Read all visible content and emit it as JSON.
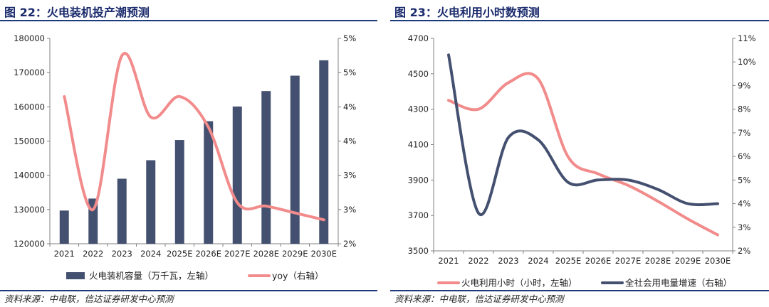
{
  "figures": [
    {
      "id": "left",
      "title": "图 22：火电装机投产潮预测",
      "source": "资料来源：中电联，信达证券研发中心预测"
    },
    {
      "id": "right",
      "title": "图 23：火电利用小时数预测",
      "source": "资料来源：中电联，信达证券研发中心预测"
    }
  ],
  "chart_data": [
    {
      "type": "bar",
      "categories": [
        "2021",
        "2022",
        "2023",
        "2024",
        "2025E",
        "2026E",
        "2027E",
        "2028E",
        "2029E",
        "2030E"
      ],
      "series": [
        {
          "name": "火电装机容量（万千瓦，左轴）",
          "kind": "bar",
          "axis": "left",
          "color": "#44506f",
          "values": [
            129700,
            133200,
            139000,
            144400,
            150300,
            155800,
            160100,
            164600,
            169100,
            173600
          ]
        },
        {
          "name": "yoy（右轴）",
          "kind": "line",
          "axis": "right",
          "color": "#f28b8b",
          "values": [
            4.15,
            2.5,
            4.75,
            3.85,
            4.15,
            3.7,
            2.6,
            2.55,
            2.45,
            2.35
          ]
        }
      ],
      "left_axis": {
        "min": 120000,
        "max": 180000,
        "ticks": [
          "120000",
          "130000",
          "140000",
          "150000",
          "160000",
          "170000",
          "180000"
        ]
      },
      "right_axis": {
        "min": 2,
        "max": 5,
        "ticks": [
          "2%",
          "3%",
          "3%",
          "4%",
          "4%",
          "5%",
          "5%"
        ]
      },
      "grid": false,
      "legend": "bottom"
    },
    {
      "type": "line",
      "categories": [
        "2021",
        "2022",
        "2023",
        "2024",
        "2025E",
        "2026E",
        "2027E",
        "2028E",
        "2029E",
        "2030E"
      ],
      "series": [
        {
          "name": "火电利用小时（小时，左轴）",
          "kind": "line",
          "axis": "left",
          "color": "#f28b8b",
          "values": [
            4350,
            4300,
            4450,
            4470,
            4030,
            3935,
            3870,
            3780,
            3680,
            3590
          ]
        },
        {
          "name": "全社会用电量增速（右轴）",
          "kind": "line",
          "axis": "right",
          "color": "#44506f",
          "values": [
            10.3,
            3.6,
            6.8,
            6.7,
            4.9,
            5.0,
            5.0,
            4.6,
            4.0,
            4.0
          ]
        }
      ],
      "left_axis": {
        "min": 3500,
        "max": 4700,
        "ticks": [
          "3500",
          "3700",
          "3900",
          "4100",
          "4300",
          "4500",
          "4700"
        ]
      },
      "right_axis": {
        "min": 2,
        "max": 11,
        "ticks": [
          "2%",
          "3%",
          "4%",
          "5%",
          "6%",
          "7%",
          "8%",
          "9%",
          "10%",
          "11%"
        ]
      },
      "grid": false,
      "legend": "bottom"
    }
  ]
}
